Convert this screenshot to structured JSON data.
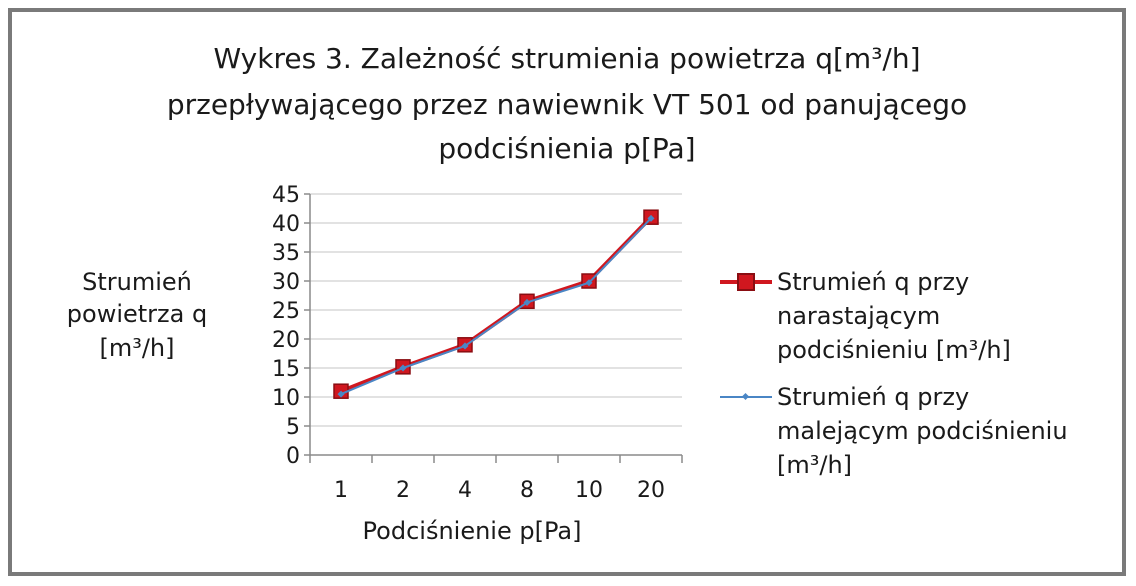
{
  "chart_data": {
    "type": "line",
    "title_lines": [
      "Wykres 3. Zależność strumienia powietrza q[m³/h]",
      "przepływającego przez nawiewnik VT 501 od panującego",
      "podciśnienia p[Pa]"
    ],
    "xlabel": "Podciśnienie p[Pa]",
    "ylabel_lines": [
      "Strumień",
      "powietrza q",
      "[m³/h]"
    ],
    "categories": [
      "1",
      "2",
      "4",
      "8",
      "10",
      "20"
    ],
    "ylim": [
      0,
      45
    ],
    "yticks": [
      "0",
      "5",
      "10",
      "15",
      "20",
      "25",
      "30",
      "35",
      "40",
      "45"
    ],
    "grid": true,
    "legend_position": "right",
    "series": [
      {
        "name_lines": [
          "Strumień q przy",
          "narastającym",
          "podciśnieniu [m³/h]"
        ],
        "color": "#d0171f",
        "marker": "square",
        "values": [
          11,
          15.2,
          19,
          26.5,
          30,
          41
        ]
      },
      {
        "name_lines": [
          "Strumień q przy",
          "malejącym podciśnieniu",
          "[m³/h]"
        ],
        "color": "#4a86c5",
        "marker": "diamond",
        "values": [
          10.5,
          15,
          18.8,
          26.3,
          29.7,
          40.8
        ]
      }
    ]
  }
}
